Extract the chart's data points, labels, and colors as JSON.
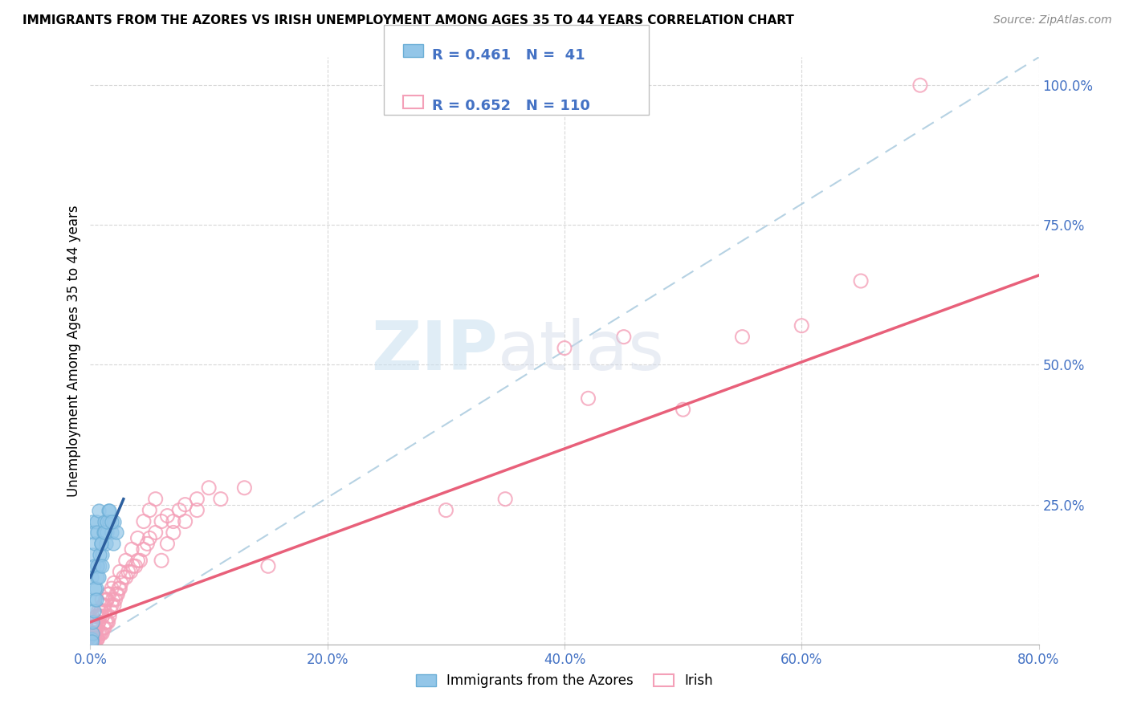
{
  "title": "IMMIGRANTS FROM THE AZORES VS IRISH UNEMPLOYMENT AMONG AGES 35 TO 44 YEARS CORRELATION CHART",
  "source": "Source: ZipAtlas.com",
  "ylabel": "Unemployment Among Ages 35 to 44 years",
  "legend_label1": "Immigrants from the Azores",
  "legend_label2": "Irish",
  "r1": 0.461,
  "n1": 41,
  "r2": 0.652,
  "n2": 110,
  "color1_fill": "#93c6e8",
  "color1_edge": "#6baed6",
  "color2_fill": "none",
  "color2_edge": "#f4a0b8",
  "trendline1_color": "#2c5f9e",
  "trendline2_color": "#e8607a",
  "ref_line_color": "#aecde0",
  "watermark": "ZIPatlas",
  "xmin": 0.0,
  "xmax": 0.8,
  "ymin": 0.0,
  "ymax": 1.05,
  "xtick_labels": [
    "0.0%",
    "20.0%",
    "40.0%",
    "60.0%",
    "80.0%"
  ],
  "xtick_vals": [
    0.0,
    0.2,
    0.4,
    0.6,
    0.8
  ],
  "ytick_labels_right": [
    "100.0%",
    "75.0%",
    "50.0%",
    "25.0%"
  ],
  "ytick_vals_right": [
    1.0,
    0.75,
    0.5,
    0.25
  ],
  "azores_x": [
    0.001,
    0.001,
    0.002,
    0.002,
    0.002,
    0.003,
    0.003,
    0.004,
    0.004,
    0.005,
    0.005,
    0.006,
    0.006,
    0.007,
    0.008,
    0.009,
    0.01,
    0.011,
    0.012,
    0.013,
    0.014,
    0.015,
    0.016,
    0.018,
    0.019,
    0.02,
    0.022,
    0.001,
    0.002,
    0.003,
    0.004,
    0.005,
    0.006,
    0.007,
    0.008,
    0.009,
    0.01,
    0.012,
    0.014,
    0.016,
    0.018
  ],
  "azores_y": [
    0.01,
    0.12,
    0.02,
    0.16,
    0.22,
    0.14,
    0.2,
    0.08,
    0.18,
    0.1,
    0.22,
    0.12,
    0.2,
    0.24,
    0.14,
    0.18,
    0.16,
    0.2,
    0.22,
    0.18,
    0.2,
    0.24,
    0.22,
    0.2,
    0.18,
    0.22,
    0.2,
    0.005,
    0.04,
    0.06,
    0.1,
    0.08,
    0.14,
    0.12,
    0.16,
    0.18,
    0.14,
    0.2,
    0.22,
    0.24,
    0.22
  ],
  "irish_x": [
    0.001,
    0.001,
    0.001,
    0.002,
    0.002,
    0.002,
    0.002,
    0.003,
    0.003,
    0.003,
    0.003,
    0.004,
    0.004,
    0.004,
    0.005,
    0.005,
    0.005,
    0.006,
    0.006,
    0.006,
    0.007,
    0.007,
    0.007,
    0.008,
    0.008,
    0.009,
    0.009,
    0.01,
    0.01,
    0.01,
    0.011,
    0.011,
    0.012,
    0.012,
    0.013,
    0.013,
    0.014,
    0.014,
    0.015,
    0.015,
    0.016,
    0.017,
    0.018,
    0.019,
    0.02,
    0.021,
    0.022,
    0.023,
    0.024,
    0.025,
    0.026,
    0.028,
    0.03,
    0.032,
    0.034,
    0.036,
    0.038,
    0.04,
    0.042,
    0.045,
    0.048,
    0.05,
    0.055,
    0.06,
    0.065,
    0.07,
    0.075,
    0.08,
    0.09,
    0.1,
    0.001,
    0.002,
    0.003,
    0.004,
    0.005,
    0.006,
    0.007,
    0.008,
    0.009,
    0.01,
    0.012,
    0.014,
    0.016,
    0.018,
    0.02,
    0.025,
    0.03,
    0.035,
    0.04,
    0.045,
    0.05,
    0.055,
    0.06,
    0.065,
    0.07,
    0.08,
    0.09,
    0.11,
    0.13,
    0.15,
    0.3,
    0.35,
    0.4,
    0.42,
    0.45,
    0.5,
    0.55,
    0.6,
    0.65,
    0.7
  ],
  "irish_y": [
    0.005,
    0.01,
    0.02,
    0.005,
    0.01,
    0.02,
    0.03,
    0.005,
    0.01,
    0.02,
    0.04,
    0.01,
    0.02,
    0.04,
    0.01,
    0.03,
    0.05,
    0.01,
    0.03,
    0.05,
    0.02,
    0.04,
    0.06,
    0.02,
    0.05,
    0.02,
    0.06,
    0.02,
    0.05,
    0.08,
    0.03,
    0.07,
    0.03,
    0.06,
    0.04,
    0.08,
    0.04,
    0.08,
    0.04,
    0.09,
    0.05,
    0.06,
    0.07,
    0.08,
    0.07,
    0.08,
    0.09,
    0.09,
    0.1,
    0.1,
    0.11,
    0.12,
    0.12,
    0.13,
    0.13,
    0.14,
    0.14,
    0.15,
    0.15,
    0.17,
    0.18,
    0.19,
    0.2,
    0.22,
    0.23,
    0.22,
    0.24,
    0.25,
    0.26,
    0.28,
    0.005,
    0.01,
    0.02,
    0.03,
    0.02,
    0.01,
    0.04,
    0.05,
    0.06,
    0.05,
    0.07,
    0.08,
    0.09,
    0.1,
    0.11,
    0.13,
    0.15,
    0.17,
    0.19,
    0.22,
    0.24,
    0.26,
    0.15,
    0.18,
    0.2,
    0.22,
    0.24,
    0.26,
    0.28,
    0.14,
    0.24,
    0.26,
    0.53,
    0.44,
    0.55,
    0.42,
    0.55,
    0.57,
    0.65,
    1.0
  ],
  "ref_line_x": [
    0.0,
    0.8
  ],
  "ref_line_y": [
    0.0,
    1.05
  ],
  "irish_trend_x": [
    0.0,
    0.8
  ],
  "irish_trend_y": [
    0.04,
    0.66
  ],
  "azores_trend_x": [
    0.0,
    0.028
  ],
  "azores_trend_y": [
    0.12,
    0.26
  ]
}
